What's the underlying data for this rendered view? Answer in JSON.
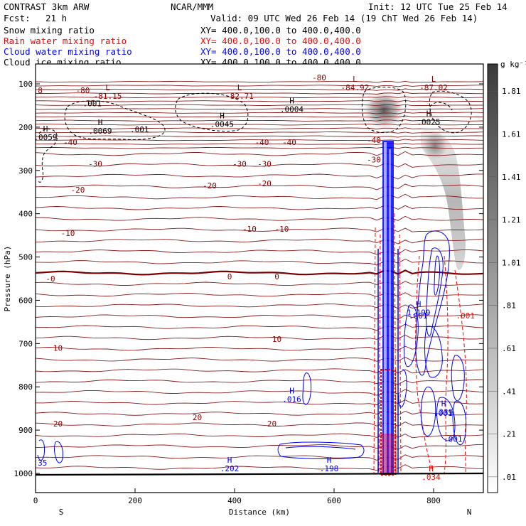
{
  "header": {
    "title": "CONTRAST  3km ARW",
    "producer": "NCAR/MMM",
    "init": "Init: 12 UTC Tue 25 Feb 14",
    "fcst_label": "Fcst:",
    "fcst_value": "21 h",
    "valid": "Valid: 09 UTC Wed 26 Feb 14 (19 ChT Wed 26 Feb 14)"
  },
  "legend": [
    {
      "label": "Snow mixing ratio",
      "xy": "XY= 400.0,100.0 to 400.0,400.0",
      "color": "#000000"
    },
    {
      "label": "Rain water mixing ratio",
      "xy": "XY= 400.0,100.0 to 400.0,400.0",
      "color": "#ff0000"
    },
    {
      "label": "Cloud water mixing ratio",
      "xy": "XY= 400.0,100.0 to 400.0,400.0",
      "color": "#0000ff"
    },
    {
      "label": "Cloud ice mixing ratio",
      "xy": "XY= 400.0,100.0 to 400.0,400.0",
      "color": "#000000"
    }
  ],
  "chart_data": {
    "type": "contour",
    "xlabel": "Distance (km)",
    "ylabel": "Pressure (hPa)",
    "xlim": [
      0,
      900
    ],
    "ylim_hpa": [
      1000,
      100
    ],
    "x_ticks": [
      0,
      200,
      400,
      600,
      800
    ],
    "y_ticks": [
      100,
      200,
      300,
      400,
      500,
      600,
      700,
      800,
      900,
      1000
    ],
    "left_end_label": "S",
    "right_end_label": "N",
    "colorbar": {
      "units": "g kg⁻¹",
      "levels": [
        "1.81",
        "1.61",
        "1.41",
        "1.21",
        "1.01",
        ".81",
        ".61",
        ".41",
        ".21",
        ".01"
      ]
    },
    "temperature_labels": [
      {
        "text": "2.8",
        "x": 0,
        "p": 115
      },
      {
        "text": "-80",
        "x": 95,
        "p": 115
      },
      {
        "text": "-80",
        "x": 570,
        "p": 85
      },
      {
        "text": "-40",
        "x": 70,
        "p": 235
      },
      {
        "text": "-40",
        "x": 455,
        "p": 235
      },
      {
        "text": "-40",
        "x": 510,
        "p": 235
      },
      {
        "text": "-40",
        "x": 680,
        "p": 230
      },
      {
        "text": "-30",
        "x": 120,
        "p": 285
      },
      {
        "text": "-30",
        "x": 410,
        "p": 285
      },
      {
        "text": "-30",
        "x": 460,
        "p": 285
      },
      {
        "text": "-30",
        "x": 680,
        "p": 275
      },
      {
        "text": "-20",
        "x": 85,
        "p": 345
      },
      {
        "text": "-20",
        "x": 350,
        "p": 335
      },
      {
        "text": "-20",
        "x": 460,
        "p": 330
      },
      {
        "text": "-10",
        "x": 65,
        "p": 445
      },
      {
        "text": "-10",
        "x": 430,
        "p": 435
      },
      {
        "text": "-10",
        "x": 495,
        "p": 435
      },
      {
        "text": "-0",
        "x": 30,
        "p": 550
      },
      {
        "text": "0",
        "x": 390,
        "p": 545
      },
      {
        "text": "0",
        "x": 485,
        "p": 545
      },
      {
        "text": "10",
        "x": 45,
        "p": 710
      },
      {
        "text": "10",
        "x": 485,
        "p": 690
      },
      {
        "text": "20",
        "x": 45,
        "p": 885
      },
      {
        "text": "20",
        "x": 325,
        "p": 870
      },
      {
        "text": "20",
        "x": 475,
        "p": 885
      }
    ],
    "extrema": [
      {
        "kind": "L",
        "value": "-81.15",
        "x": 145,
        "p": 115,
        "color": "#8b0000"
      },
      {
        "kind": "L",
        "value": "-82.71",
        "x": 410,
        "p": 115,
        "color": "#8b0000"
      },
      {
        "kind": "L",
        "value": "-84.92",
        "x": 642,
        "p": 95,
        "color": "#8b0000"
      },
      {
        "kind": "L",
        "value": "-87.02",
        "x": 800,
        "p": 95,
        "color": "#8b0000"
      },
      {
        "kind": "H",
        "value": ".0004",
        "x": 515,
        "p": 145,
        "color": "#000000"
      },
      {
        "kind": "H",
        "value": ".0045",
        "x": 375,
        "p": 180,
        "color": "#000000"
      },
      {
        "kind": "H",
        "value": ".0069",
        "x": 130,
        "p": 195,
        "color": "#000000"
      },
      {
        "kind": "H",
        "value": ".0059",
        "x": 20,
        "p": 210,
        "color": "#000000"
      },
      {
        "kind": "H",
        "value": ".0025",
        "x": 790,
        "p": 175,
        "color": "#000000"
      },
      {
        "kind": "H",
        "value": ".016",
        "x": 515,
        "p": 815,
        "color": "#0000ff"
      },
      {
        "kind": "H",
        "value": ".202",
        "x": 390,
        "p": 975,
        "color": "#0000ff"
      },
      {
        "kind": "H",
        "value": ".198",
        "x": 590,
        "p": 975,
        "color": "#0000ff"
      },
      {
        "kind": "H",
        "value": "1.199",
        "x": 770,
        "p": 615,
        "color": "#0000ff"
      },
      {
        "kind": "H",
        "value": ".339",
        "x": 820,
        "p": 845,
        "color": "#0000ff"
      },
      {
        "kind": "H",
        "value": ".034",
        "x": 795,
        "p": 995,
        "color": "#ff0000"
      }
    ],
    "contour_labels": [
      {
        "text": ".001",
        "x": 95,
        "p": 145,
        "color": "#000000"
      },
      {
        "text": ".001",
        "x": 190,
        "p": 205,
        "color": "#000000"
      },
      {
        "text": ".001",
        "x": 750,
        "p": 635,
        "color": "#0000ff"
      },
      {
        "text": ".001",
        "x": 845,
        "p": 635,
        "color": "#ff0000"
      },
      {
        "text": ".001",
        "x": 800,
        "p": 860,
        "color": "#0000ff"
      },
      {
        "text": ".001",
        "x": 820,
        "p": 920,
        "color": "#0000ff"
      },
      {
        "text": ".35",
        "x": -5,
        "p": 975,
        "color": "#0000ff"
      }
    ]
  }
}
